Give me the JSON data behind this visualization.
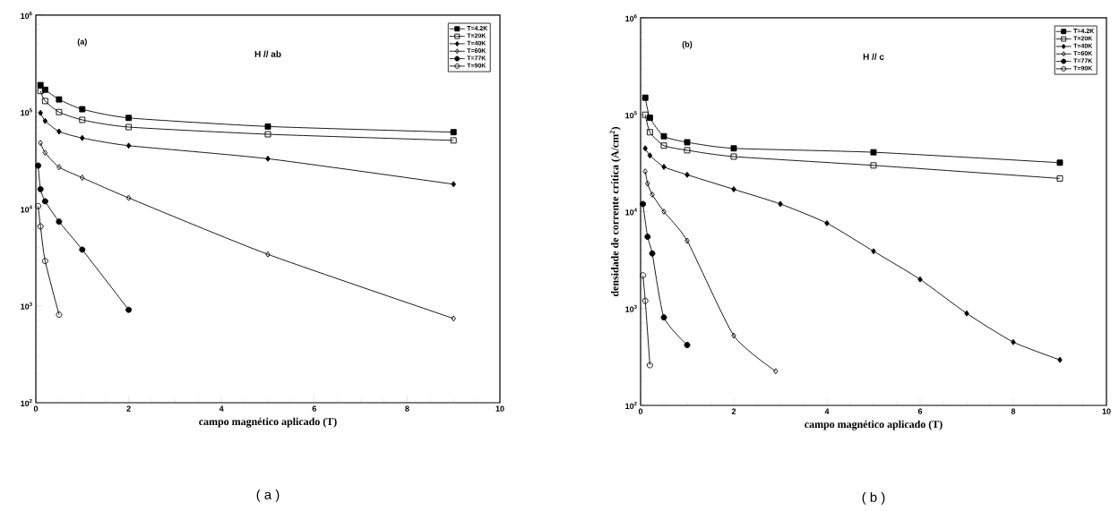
{
  "chart_data": [
    {
      "type": "line",
      "xlabel": "campo magnético aplicado (T)",
      "log": "y",
      "legend": "top right",
      "grid": false,
      "xlim": [
        0,
        10
      ],
      "xticks": [
        0,
        2,
        4,
        6,
        8,
        10
      ],
      "ylim": [
        100,
        1000000
      ],
      "yticks": [
        {
          "value": 100,
          "label": "10$^{2}$"
        },
        {
          "value": 1000,
          "label": "10$^{3}$"
        },
        {
          "value": 10000,
          "label": "10$^{4}$"
        },
        {
          "value": 100000,
          "label": "10$^{5}$"
        },
        {
          "value": 1000000,
          "label": "10$^{6}$"
        }
      ],
      "annotations": [
        "(a)",
        "H // ab",
        "( a )"
      ],
      "series": [
        {
          "name": "T=4.2K",
          "color": "#000000",
          "marker": "square",
          "colors": [
            "#000000",
            "#000000",
            "#000000",
            "#000000",
            "#000000",
            "#000000",
            "#000000"
          ],
          "x": [
            0.1,
            0.2,
            0.5,
            1,
            2,
            5,
            9
          ],
          "values": [
            190000,
            170000,
            135000,
            107000,
            87000,
            71000,
            62000
          ]
        },
        {
          "name": "T=20K",
          "color": "#000000",
          "marker": "square",
          "colors": [
            "#ffffff",
            "#ffffff",
            "#ffffff",
            "#ffffff",
            "#ffffff",
            "#ffffff",
            "#ffffff"
          ],
          "x": [
            0.1,
            0.2,
            0.5,
            1,
            2,
            5,
            9
          ],
          "values": [
            165000,
            130000,
            100000,
            83000,
            70000,
            59000,
            51000
          ]
        },
        {
          "name": "T=40K",
          "color": "#000000",
          "marker": "diamond",
          "colors": [
            "#000000",
            "#000000",
            "#000000",
            "#000000",
            "#000000",
            "#000000",
            "#000000"
          ],
          "x": [
            0.1,
            0.2,
            0.5,
            1,
            2,
            5,
            9
          ],
          "values": [
            98000,
            81000,
            63000,
            54000,
            45000,
            33000,
            18000
          ]
        },
        {
          "name": "T=60K",
          "color": "#000000",
          "marker": "diamond",
          "colors": [
            "#ffffff",
            "#ffffff",
            "#ffffff",
            "#ffffff",
            "#ffffff",
            "#ffffff",
            "#ffffff"
          ],
          "x": [
            0.1,
            0.2,
            0.5,
            1,
            2,
            5,
            9
          ],
          "values": [
            48000,
            38000,
            27000,
            21000,
            13000,
            3400,
            740
          ]
        },
        {
          "name": "T=77K",
          "color": "#000000",
          "marker": "circle",
          "colors": [
            "#000000",
            "#000000",
            "#000000",
            "#000000",
            "#000000",
            "#000000"
          ],
          "x": [
            0.05,
            0.1,
            0.2,
            0.5,
            1,
            2
          ],
          "values": [
            28000,
            16000,
            12000,
            7400,
            3800,
            910
          ]
        },
        {
          "name": "T=90K",
          "color": "#000000",
          "marker": "circle",
          "colors": [
            "#ffffff",
            "#ffffff",
            "#ffffff",
            "#ffffff"
          ],
          "x": [
            0.05,
            0.1,
            0.2,
            0.5
          ],
          "values": [
            10700,
            6600,
            2900,
            810
          ]
        }
      ]
    },
    {
      "type": "line",
      "xlabel": "campo magnético aplicado (T)",
      "ylabel": "densidade de corrente crítica  (A/cm$^{2}$)",
      "log": "y",
      "legend": "top right",
      "grid": false,
      "xlim": [
        0,
        10
      ],
      "xticks": [
        0,
        2,
        4,
        6,
        8,
        10
      ],
      "ylim": [
        100,
        1000000
      ],
      "yticks": [
        {
          "value": 100,
          "label": "10$^{2}$"
        },
        {
          "value": 1000,
          "label": "10$^{3}$"
        },
        {
          "value": 10000,
          "label": "10$^{4}$"
        },
        {
          "value": 100000,
          "label": "10$^{5}$"
        },
        {
          "value": 1000000,
          "label": "10$^{6}$"
        }
      ],
      "annotations": [
        "(b)",
        "H // c",
        "( b )"
      ],
      "series": [
        {
          "name": "T=4.2K",
          "color": "#000000",
          "marker": "square",
          "colors": [
            "#000000",
            "#000000",
            "#000000",
            "#000000",
            "#000000",
            "#000000",
            "#000000"
          ],
          "x": [
            0.1,
            0.2,
            0.5,
            1,
            2,
            5,
            9
          ],
          "values": [
            150000,
            93000,
            60000,
            52000,
            45000,
            41000,
            32000
          ]
        },
        {
          "name": "T=20K",
          "color": "#000000",
          "marker": "square",
          "colors": [
            "#ffffff",
            "#ffffff",
            "#ffffff",
            "#ffffff",
            "#ffffff",
            "#ffffff",
            "#ffffff"
          ],
          "x": [
            0.1,
            0.2,
            0.5,
            1,
            2,
            5,
            9
          ],
          "values": [
            100000,
            66000,
            48000,
            43000,
            37000,
            30000,
            22000
          ]
        },
        {
          "name": "T=40K",
          "color": "#000000",
          "marker": "diamond",
          "colors": [
            "#000000",
            "#000000",
            "#000000",
            "#000000",
            "#000000",
            "#000000",
            "#000000",
            "#000000",
            "#000000",
            "#000000",
            "#000000",
            "#000000"
          ],
          "x": [
            0.1,
            0.2,
            0.5,
            1,
            2,
            3,
            4,
            5,
            6,
            7,
            8,
            9
          ],
          "values": [
            45000,
            38000,
            29000,
            24000,
            17000,
            12000,
            7600,
            3900,
            2000,
            890,
            450,
            295
          ]
        },
        {
          "name": "T=60K",
          "color": "#000000",
          "marker": "diamond",
          "colors": [
            "#ffffff",
            "#ffffff",
            "#ffffff",
            "#ffffff",
            "#ffffff",
            "#ffffff",
            "#ffffff"
          ],
          "x": [
            0.1,
            0.15,
            0.25,
            0.5,
            1,
            2,
            2.9
          ],
          "values": [
            26000,
            19500,
            15000,
            10000,
            5000,
            525,
            225
          ]
        },
        {
          "name": "T=77K",
          "color": "#000000",
          "marker": "circle",
          "colors": [
            "#000000",
            "#000000",
            "#000000",
            "#000000",
            "#000000"
          ],
          "x": [
            0.05,
            0.15,
            0.25,
            0.5,
            1
          ],
          "values": [
            12000,
            5500,
            3700,
            810,
            420
          ]
        },
        {
          "name": "T=90K",
          "color": "#000000",
          "marker": "circle",
          "colors": [
            "#ffffff",
            "#ffffff",
            "#ffffff"
          ],
          "x": [
            0.05,
            0.1,
            0.2
          ],
          "values": [
            2200,
            1200,
            260
          ]
        }
      ]
    }
  ]
}
